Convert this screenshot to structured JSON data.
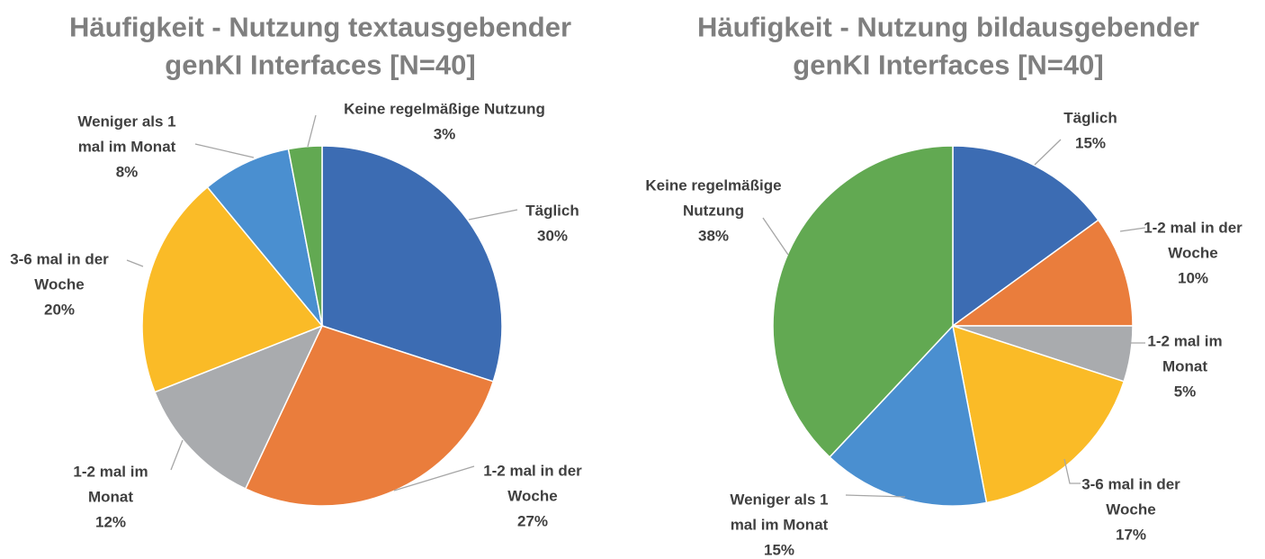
{
  "chart_data": [
    {
      "type": "pie",
      "title_lines": [
        "Häufigkeit - Nutzung textausgebender",
        "genKI Interfaces [N=40]"
      ],
      "slices": [
        {
          "category": "Täglich",
          "category_lines": [
            "Täglich"
          ],
          "value": 30,
          "percent_label": "30%",
          "color": "#3c6cb3"
        },
        {
          "category": "1-2 mal in der Woche",
          "category_lines": [
            "1-2 mal in der",
            "Woche"
          ],
          "value": 27,
          "percent_label": "27%",
          "color": "#ea7d3c"
        },
        {
          "category": "1-2 mal im Monat",
          "category_lines": [
            "1-2 mal im",
            "Monat"
          ],
          "value": 12,
          "percent_label": "12%",
          "color": "#a9abae"
        },
        {
          "category": "3-6 mal in der Woche",
          "category_lines": [
            "3-6 mal in der",
            "Woche"
          ],
          "value": 20,
          "percent_label": "20%",
          "color": "#fabb27"
        },
        {
          "category": "Weniger als 1 mal im Monat",
          "category_lines": [
            "Weniger als 1",
            "mal im Monat"
          ],
          "value": 8,
          "percent_label": "8%",
          "color": "#4a8fd0"
        },
        {
          "category": "Keine regelmäßige Nutzung",
          "category_lines": [
            "Keine regelmäßige Nutzung"
          ],
          "value": 3,
          "percent_label": "3%",
          "color": "#62a952"
        }
      ]
    },
    {
      "type": "pie",
      "title_lines": [
        "Häufigkeit - Nutzung bildausgebender",
        "genKI Interfaces [N=40]"
      ],
      "slices": [
        {
          "category": "Täglich",
          "category_lines": [
            "Täglich"
          ],
          "value": 15,
          "percent_label": "15%",
          "color": "#3c6cb3"
        },
        {
          "category": "1-2 mal in der Woche",
          "category_lines": [
            "1-2 mal in der",
            "Woche"
          ],
          "value": 10,
          "percent_label": "10%",
          "color": "#ea7d3c"
        },
        {
          "category": "1-2 mal im Monat",
          "category_lines": [
            "1-2 mal im",
            "Monat"
          ],
          "value": 5,
          "percent_label": "5%",
          "color": "#a9abae"
        },
        {
          "category": "3-6 mal in der Woche",
          "category_lines": [
            "3-6 mal in der",
            "Woche"
          ],
          "value": 17,
          "percent_label": "17%",
          "color": "#fabb27"
        },
        {
          "category": "Weniger als 1 mal im Monat",
          "category_lines": [
            "Weniger als 1",
            "mal im Monat"
          ],
          "value": 15,
          "percent_label": "15%",
          "color": "#4a8fd0"
        },
        {
          "category": "Keine regelmäßige Nutzung",
          "category_lines": [
            "Keine regelmäßige",
            "Nutzung"
          ],
          "value": 38,
          "percent_label": "38%",
          "color": "#62a952"
        }
      ]
    }
  ]
}
